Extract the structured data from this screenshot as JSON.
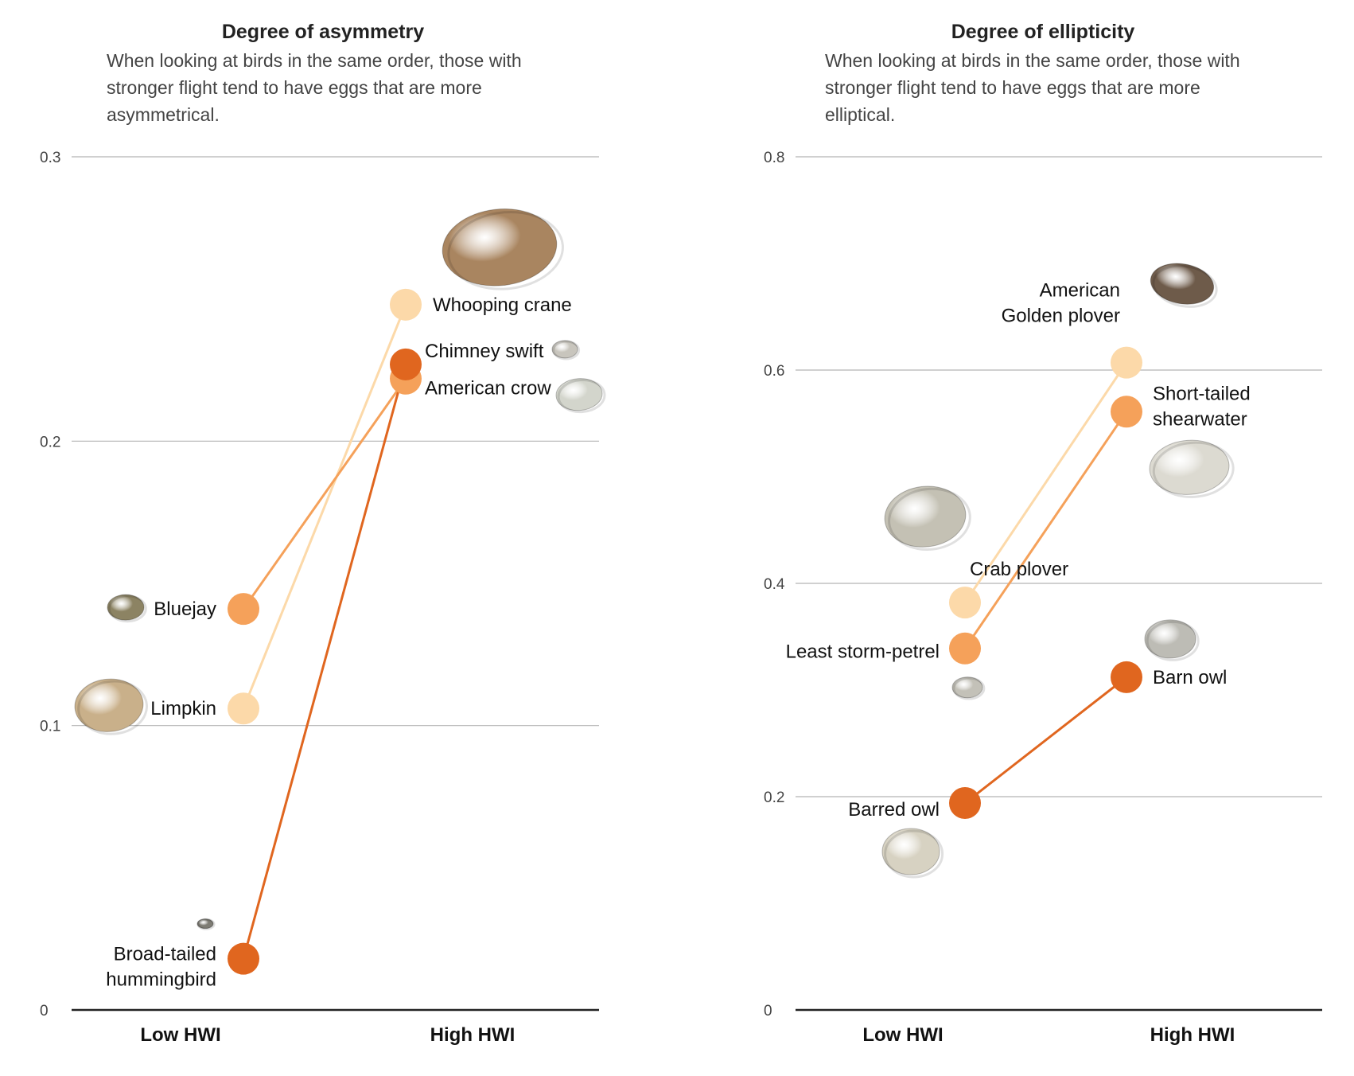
{
  "chart_data": [
    {
      "type": "line",
      "title": "Degree of asymmetry",
      "subtitle": [
        "When looking at birds in the same order, those with",
        "stronger flight tend to have eggs that are more",
        "asymmetrical."
      ],
      "categories": [
        "Low HWI",
        "High HWI"
      ],
      "ylim": [
        0,
        0.3
      ],
      "yticks": [
        0,
        0.1,
        0.2,
        0.3
      ],
      "grid": true,
      "series": [
        {
          "color": "#fcd9a9",
          "values": [
            0.106,
            0.248
          ],
          "labels": [
            "Limpkin",
            "Whooping crane"
          ],
          "egg_colors": [
            "#c9b08a",
            "#a98560"
          ]
        },
        {
          "color": "#f5a15a",
          "values": [
            0.141,
            0.222
          ],
          "labels": [
            "Bluejay",
            "American crow"
          ],
          "egg_colors": [
            "#8c8363",
            "#d3d5cc"
          ]
        },
        {
          "color": "#e0661f",
          "values": [
            0.018,
            0.227
          ],
          "labels": [
            "Broad-tailed\nhummingbird",
            "Chimney swift"
          ],
          "egg_colors": [
            "#7e7c74",
            "#c8c5bd"
          ]
        }
      ]
    },
    {
      "type": "line",
      "title": "Degree of ellipticity",
      "subtitle": [
        "When looking at birds in the same order, those with",
        "stronger flight tend to have eggs that are more",
        "elliptical."
      ],
      "categories": [
        "Low HWI",
        "High HWI"
      ],
      "ylim": [
        0,
        0.8
      ],
      "yticks": [
        0,
        0.2,
        0.4,
        0.6,
        0.8
      ],
      "grid": true,
      "series": [
        {
          "color": "#fcd9a9",
          "values": [
            0.382,
            0.607
          ],
          "labels": [
            "Crab plover",
            "American\nGolden plover"
          ],
          "egg_colors": [
            "#c4c1b4",
            "#6e5b4a"
          ]
        },
        {
          "color": "#f5a15a",
          "values": [
            0.339,
            0.561
          ],
          "labels": [
            "Least storm-petrel",
            "Short-tailed\nshearwater"
          ],
          "egg_colors": [
            "#c3c1b8",
            "#dcdad1"
          ]
        },
        {
          "color": "#e0661f",
          "values": [
            0.194,
            0.312
          ],
          "labels": [
            "Barred owl",
            "Barn owl"
          ],
          "egg_colors": [
            "#d7d2c2",
            "#bdbcb5"
          ]
        }
      ]
    }
  ]
}
